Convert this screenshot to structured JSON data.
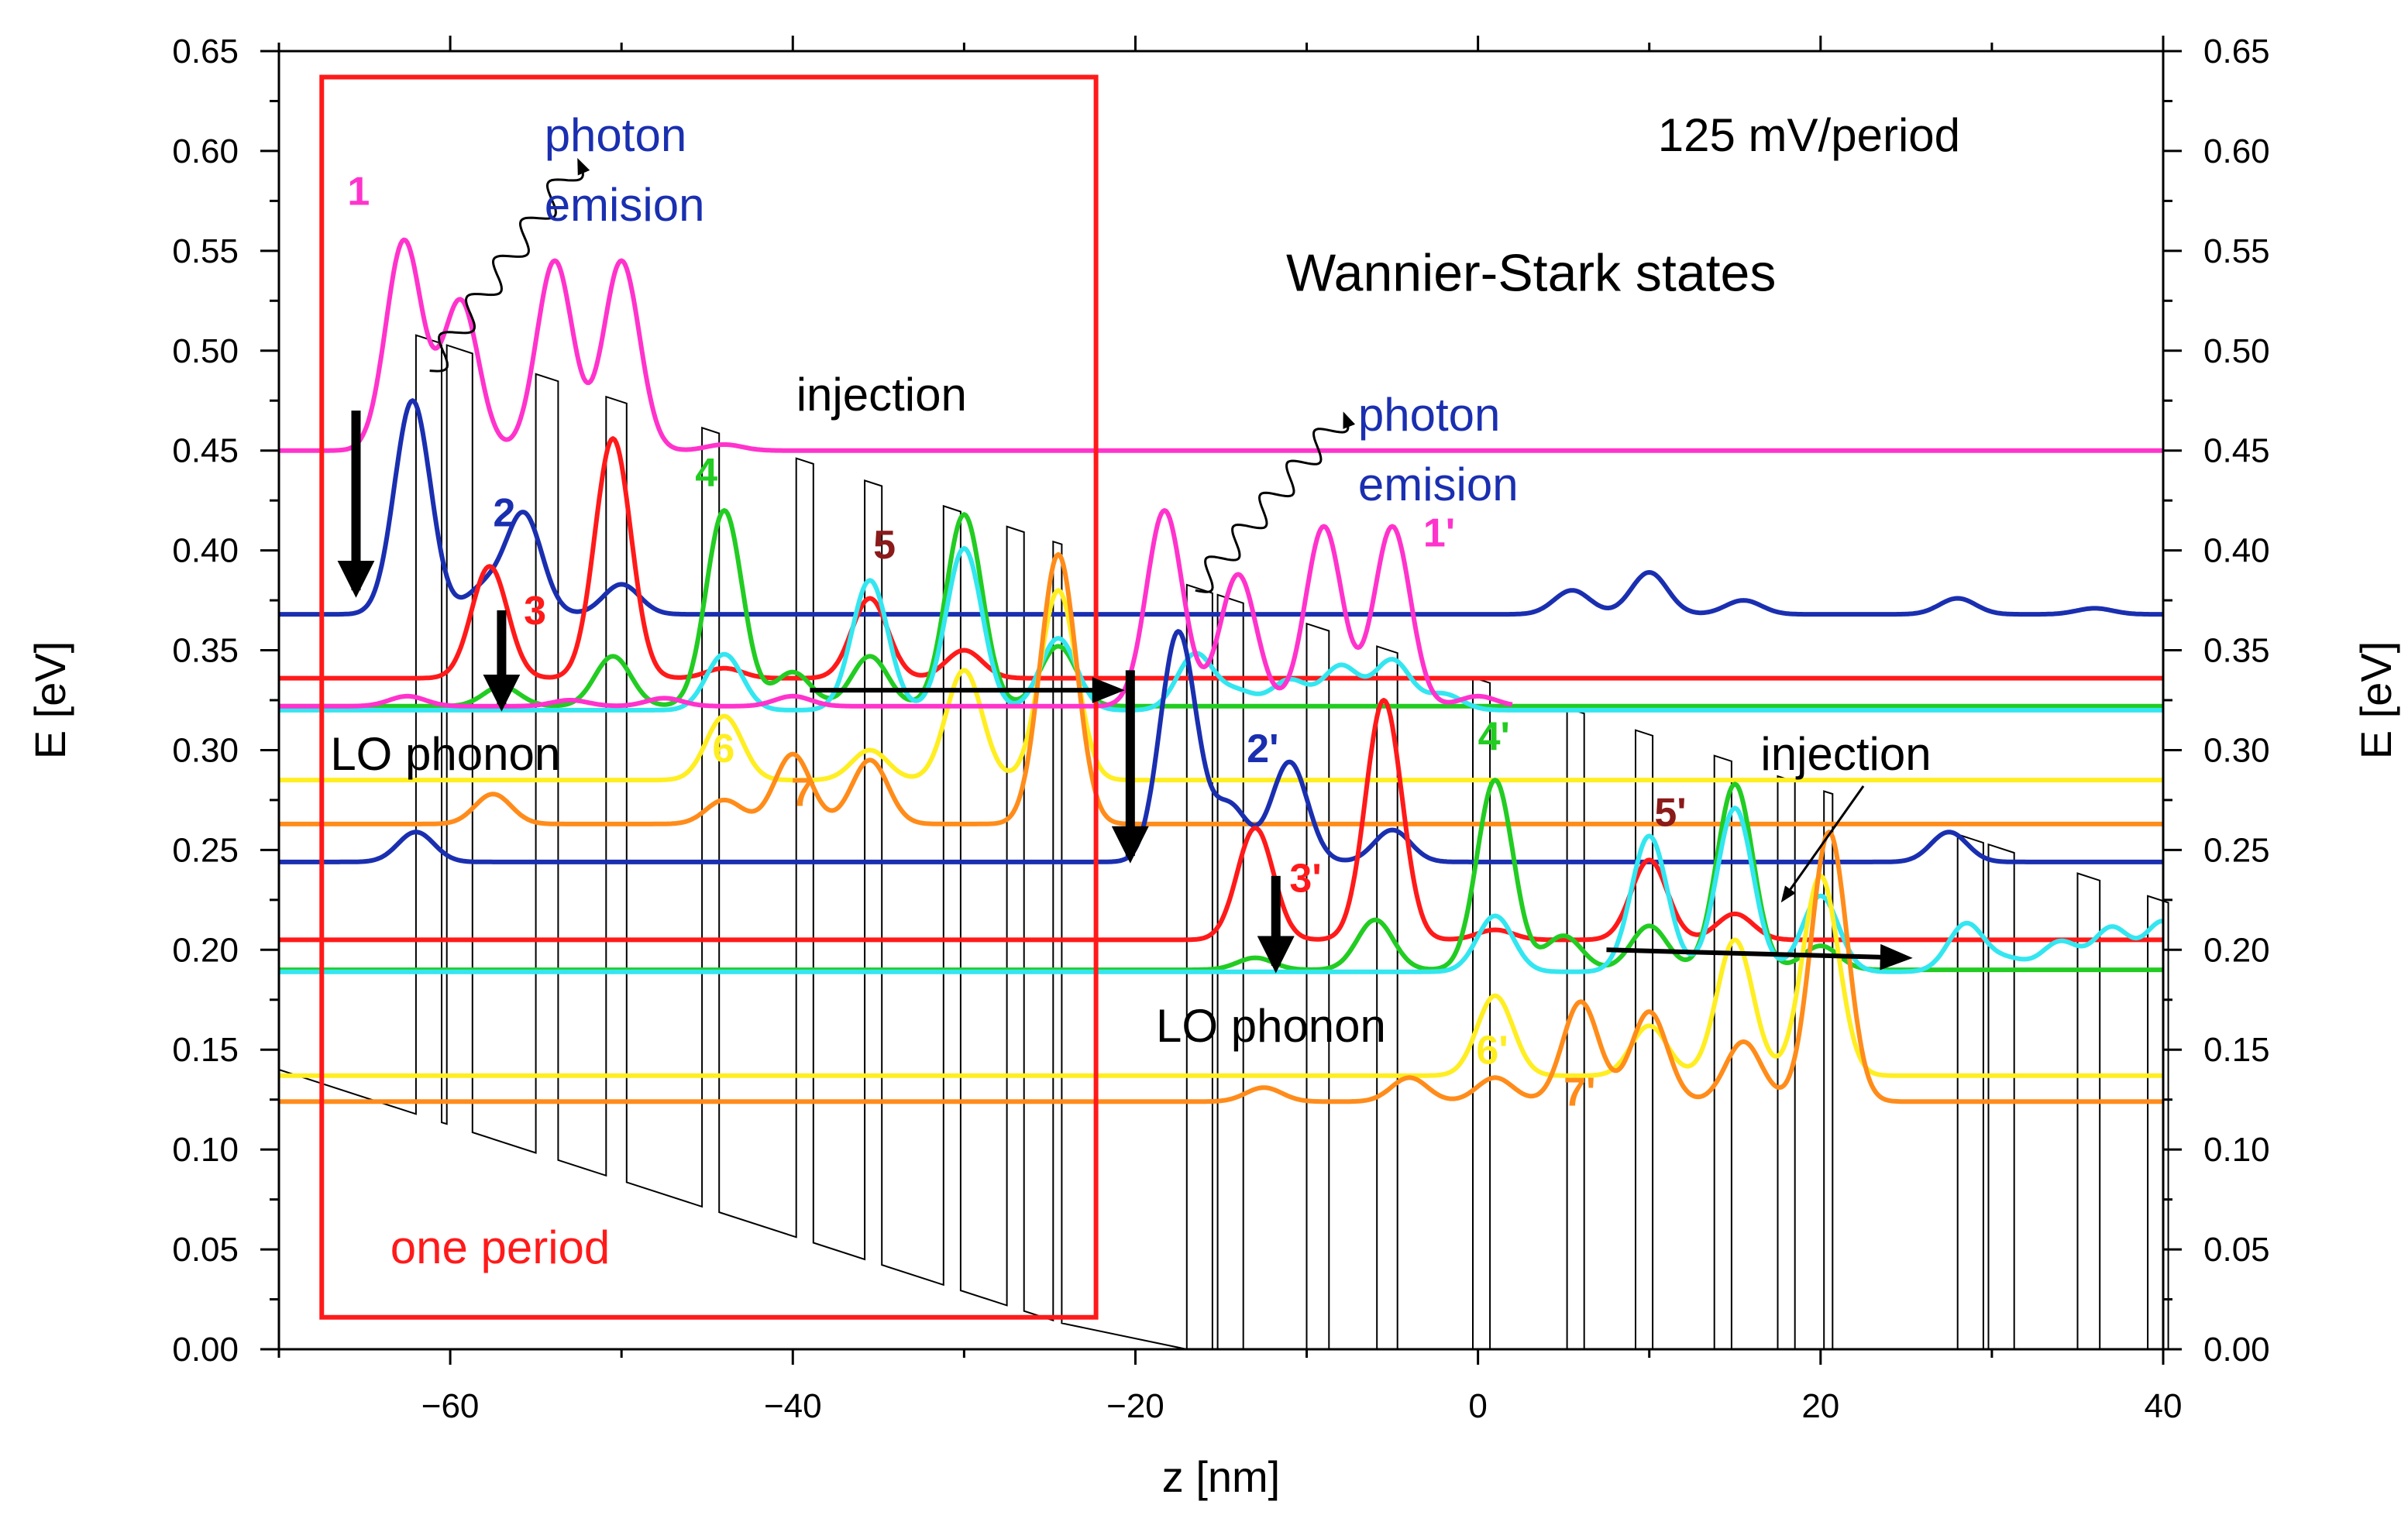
{
  "chart_data": {
    "type": "line",
    "title": "Wannier-Stark states",
    "subtitle": "125 mV/period",
    "xlabel": "z [nm]",
    "ylabel": "E [eV]",
    "ylabel_right": "E [eV]",
    "xlim": [
      -70,
      40
    ],
    "ylim": [
      0,
      0.65
    ],
    "x_ticks": [
      -60,
      -40,
      -20,
      0,
      20,
      40
    ],
    "x_tick_labels": [
      "−60",
      "−40",
      "−20",
      "0",
      "20",
      "40"
    ],
    "y_ticks": [
      0.0,
      0.05,
      0.1,
      0.15,
      0.2,
      0.25,
      0.3,
      0.35,
      0.4,
      0.45,
      0.5,
      0.55,
      0.6,
      0.65
    ],
    "y_tick_labels": [
      "0.00",
      "0.05",
      "0.10",
      "0.15",
      "0.20",
      "0.25",
      "0.30",
      "0.35",
      "0.40",
      "0.45",
      "0.50",
      "0.55",
      "0.60",
      "0.65"
    ],
    "colors": {
      "state1": "#ff33cc",
      "state2": "#1a2fb0",
      "state3": "#ff1a1a",
      "state4": "#22cc22",
      "state5": "#33e6f0",
      "state6": "#ffee22",
      "state7": "#ff8c1a",
      "label5": "#8b1a1a",
      "potential": "#000000",
      "period_box": "#ff1a1a",
      "photon_text": "#1a2fb0",
      "arrow": "#000000"
    },
    "series": [
      {
        "name": "1",
        "color": "#ff33cc",
        "energy": 0.45,
        "end": 40,
        "peaks": [
          [
            -62.7,
            0.105
          ],
          [
            -59.4,
            0.075
          ],
          [
            -53.9,
            0.095
          ],
          [
            -50.0,
            0.095
          ],
          [
            -44.0,
            0.003
          ]
        ]
      },
      {
        "name": "2",
        "color": "#1a2fb0",
        "energy": 0.368,
        "end": 40,
        "peaks": [
          [
            -62.2,
            0.107
          ],
          [
            -58.0,
            0.013
          ],
          [
            -55.7,
            0.05
          ],
          [
            -50.0,
            0.015
          ],
          [
            5.5,
            0.012
          ],
          [
            10.0,
            0.021
          ],
          [
            15.5,
            0.007
          ],
          [
            28.0,
            0.008
          ],
          [
            36.0,
            0.003
          ]
        ]
      },
      {
        "name": "3",
        "color": "#ff1a1a",
        "energy": 0.336,
        "end": 40,
        "peaks": [
          [
            -57.7,
            0.056
          ],
          [
            -50.5,
            0.12
          ],
          [
            -44.0,
            0.005
          ],
          [
            -35.5,
            0.04
          ],
          [
            -30.0,
            0.014
          ]
        ]
      },
      {
        "name": "4",
        "color": "#22cc22",
        "energy": 0.322,
        "end": 40,
        "peaks": [
          [
            -57.0,
            0.01
          ],
          [
            -50.5,
            0.025
          ],
          [
            -44.0,
            0.098
          ],
          [
            -40.0,
            0.017
          ],
          [
            -35.5,
            0.025
          ],
          [
            -30.0,
            0.096
          ],
          [
            -24.5,
            0.03
          ]
        ]
      },
      {
        "name": "5",
        "color": "#33e6f0",
        "energy": 0.32,
        "end": 40,
        "peaks": [
          [
            -44.0,
            0.028
          ],
          [
            -35.5,
            0.065
          ],
          [
            -30.0,
            0.081
          ],
          [
            -24.5,
            0.036
          ],
          [
            -16.5,
            0.028
          ],
          [
            -14.0,
            0.009
          ],
          [
            -11.0,
            0.015
          ],
          [
            -8.0,
            0.022
          ],
          [
            -5.0,
            0.025
          ],
          [
            -2.0,
            0.008
          ]
        ]
      },
      {
        "name": "6",
        "color": "#ffee22",
        "energy": 0.285,
        "end": 40,
        "peaks": [
          [
            -44.0,
            0.032
          ],
          [
            -35.5,
            0.015
          ],
          [
            -30.0,
            0.055
          ],
          [
            -24.5,
            0.095
          ]
        ]
      },
      {
        "name": "7",
        "color": "#ff8c1a",
        "energy": 0.263,
        "end": 40,
        "peaks": [
          [
            -57.5,
            0.015
          ],
          [
            -44.0,
            0.012
          ],
          [
            -40.0,
            0.035
          ],
          [
            -35.5,
            0.032
          ],
          [
            -24.5,
            0.135
          ]
        ]
      },
      {
        "name": "1'",
        "color": "#ff33cc",
        "energy": 0.322,
        "end": 2,
        "peaks": [
          [
            -62.5,
            0.005
          ],
          [
            -53.0,
            0.003
          ],
          [
            -47.5,
            0.004
          ],
          [
            -40.0,
            0.005
          ],
          [
            -18.3,
            0.098
          ],
          [
            -14.0,
            0.066
          ],
          [
            -9.0,
            0.09
          ],
          [
            -5.0,
            0.09
          ],
          [
            0.0,
            0.005
          ]
        ]
      },
      {
        "name": "2'",
        "color": "#1a2fb0",
        "energy": 0.244,
        "end": 40,
        "peaks": [
          [
            -62.0,
            0.015
          ],
          [
            -17.5,
            0.115
          ],
          [
            -14.5,
            0.028
          ],
          [
            -11.0,
            0.05
          ],
          [
            -5.0,
            0.016
          ],
          [
            27.5,
            0.015
          ]
        ]
      },
      {
        "name": "3'",
        "color": "#ff1a1a",
        "energy": 0.205,
        "end": 40,
        "peaks": [
          [
            -13.0,
            0.056
          ],
          [
            -5.5,
            0.12
          ],
          [
            1.0,
            0.005
          ],
          [
            10.0,
            0.04
          ],
          [
            15.0,
            0.013
          ]
        ]
      },
      {
        "name": "4'",
        "color": "#22cc22",
        "energy": 0.19,
        "end": 40,
        "peaks": [
          [
            -13.0,
            0.006
          ],
          [
            -6.0,
            0.025
          ],
          [
            1.0,
            0.095
          ],
          [
            5.0,
            0.017
          ],
          [
            10.0,
            0.022
          ],
          [
            15.0,
            0.093
          ],
          [
            20.0,
            0.012
          ]
        ]
      },
      {
        "name": "5'",
        "color": "#33e6f0",
        "energy": 0.189,
        "end": 40,
        "peaks": [
          [
            1.0,
            0.028
          ],
          [
            10.0,
            0.068
          ],
          [
            15.0,
            0.082
          ],
          [
            20.0,
            0.038
          ],
          [
            28.5,
            0.024
          ],
          [
            31.0,
            0.006
          ],
          [
            34.0,
            0.015
          ],
          [
            37.0,
            0.022
          ],
          [
            40.0,
            0.025
          ]
        ]
      },
      {
        "name": "6'",
        "color": "#ffee22",
        "energy": 0.137,
        "end": 40,
        "peaks": [
          [
            1.0,
            0.04
          ],
          [
            10.0,
            0.025
          ],
          [
            15.0,
            0.068
          ],
          [
            20.0,
            0.1
          ]
        ]
      },
      {
        "name": "7'",
        "color": "#ff8c1a",
        "energy": 0.124,
        "end": 40,
        "peaks": [
          [
            -12.5,
            0.007
          ],
          [
            -4.0,
            0.012
          ],
          [
            1.0,
            0.012
          ],
          [
            6.0,
            0.05
          ],
          [
            10.0,
            0.045
          ],
          [
            15.5,
            0.03
          ],
          [
            20.5,
            0.135
          ]
        ]
      }
    ],
    "potential_profile": {
      "period_nm": 45.0,
      "drop_eV_per_period": 0.125,
      "ref_z": -70,
      "ref_well_bottom": 0.14,
      "barrier_height": 0.39,
      "barriers": [
        [
          -62.0,
          1.5
        ],
        [
          -60.2,
          1.5
        ],
        [
          -55.0,
          1.3
        ],
        [
          -50.9,
          1.2
        ],
        [
          -45.3,
          1.0
        ],
        [
          -39.8,
          1.0
        ],
        [
          -35.8,
          1.0
        ],
        [
          -31.2,
          1.0
        ],
        [
          -27.5,
          1.0
        ],
        [
          -24.8,
          0.5
        ]
      ]
    },
    "period_box": {
      "x": [
        -67.5,
        -22.3
      ],
      "y": [
        0.016,
        0.637
      ],
      "label": "one period"
    },
    "annotations": {
      "field": "125 mV/period",
      "photon_emission_1": "photon",
      "photon_emission_1b": "emision",
      "photon_emission_2": "photon",
      "photon_emission_2b": "emision",
      "injection_1": "injection",
      "injection_2": "injection",
      "lo_phonon_1": "LO phonon",
      "lo_phonon_2": "LO phonon",
      "one_period": "one period"
    },
    "level_labels": [
      "1",
      "2",
      "3",
      "4",
      "5",
      "6",
      "7",
      "1'",
      "2'",
      "3'",
      "4'",
      "5'",
      "6'",
      "7'"
    ],
    "arrows": [
      {
        "kind": "relaxation",
        "from": [
          -65.5,
          0.47
        ],
        "to": [
          -65.5,
          0.38
        ]
      },
      {
        "kind": "relaxation",
        "from": [
          -57.0,
          0.37
        ],
        "to": [
          -57.0,
          0.323
        ]
      },
      {
        "kind": "injection",
        "from": [
          -39.0,
          0.33
        ],
        "to": [
          -21.0,
          0.33
        ]
      },
      {
        "kind": "relaxation",
        "from": [
          -20.3,
          0.34
        ],
        "to": [
          -20.3,
          0.247
        ]
      },
      {
        "kind": "relaxation",
        "from": [
          -11.8,
          0.237
        ],
        "to": [
          -11.8,
          0.192
        ]
      },
      {
        "kind": "injection",
        "from": [
          7.5,
          0.2
        ],
        "to": [
          25.0,
          0.196
        ]
      }
    ]
  }
}
